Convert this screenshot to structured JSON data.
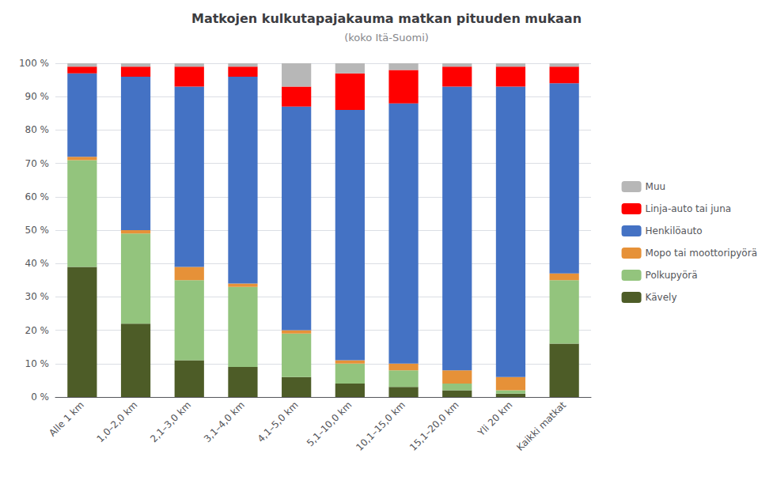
{
  "chart_data": {
    "type": "bar",
    "stacked": true,
    "title": "Matkojen kulkutapajakauma matkan pituuden mukaan",
    "subtitle": "(koko Itä-Suomi)",
    "categories": [
      "Alle 1 km",
      "1,0–2,0 km",
      "2,1–3,0 km",
      "3,1–4,0 km",
      "4,1–5,0 km",
      "5,1–10,0 km",
      "10,1–15,0 km",
      "15,1–20,0 km",
      "Yli 20 km",
      "Kaikki matkat"
    ],
    "series": [
      {
        "name": "Kävely",
        "color": "#4d5c27",
        "values": [
          39,
          22,
          11,
          9,
          6,
          4,
          3,
          2,
          1,
          16
        ]
      },
      {
        "name": "Polkupyörä",
        "color": "#93c47d",
        "values": [
          32,
          27,
          24,
          24,
          13,
          6,
          5,
          2,
          1,
          19
        ]
      },
      {
        "name": "Mopo tai moottoripyörä",
        "color": "#e69138",
        "values": [
          1,
          1,
          4,
          1,
          1,
          1,
          2,
          4,
          4,
          2
        ]
      },
      {
        "name": "Henkilöauto",
        "color": "#4472c4",
        "values": [
          25,
          46,
          54,
          62,
          67,
          75,
          78,
          85,
          87,
          57
        ]
      },
      {
        "name": "Linja-auto tai juna",
        "color": "#ff0000",
        "values": [
          2,
          3,
          6,
          3,
          6,
          11,
          10,
          6,
          6,
          5
        ]
      },
      {
        "name": "Muu",
        "color": "#b7b7b7",
        "values": [
          1,
          1,
          1,
          1,
          7,
          3,
          2,
          1,
          1,
          1
        ]
      }
    ],
    "ylim": [
      0,
      100
    ],
    "yticks": [
      {
        "value": 0,
        "label": "0 %"
      },
      {
        "value": 10,
        "label": "10 %"
      },
      {
        "value": 20,
        "label": "20 %"
      },
      {
        "value": 30,
        "label": "30 %"
      },
      {
        "value": 40,
        "label": "40 %"
      },
      {
        "value": 50,
        "label": "50 %"
      },
      {
        "value": 60,
        "label": "60 %"
      },
      {
        "value": 70,
        "label": "70 %"
      },
      {
        "value": 80,
        "label": "80 %"
      },
      {
        "value": 90,
        "label": "90 %"
      },
      {
        "value": 100,
        "label": "100 %"
      }
    ],
    "grid": true,
    "legend": "right"
  }
}
